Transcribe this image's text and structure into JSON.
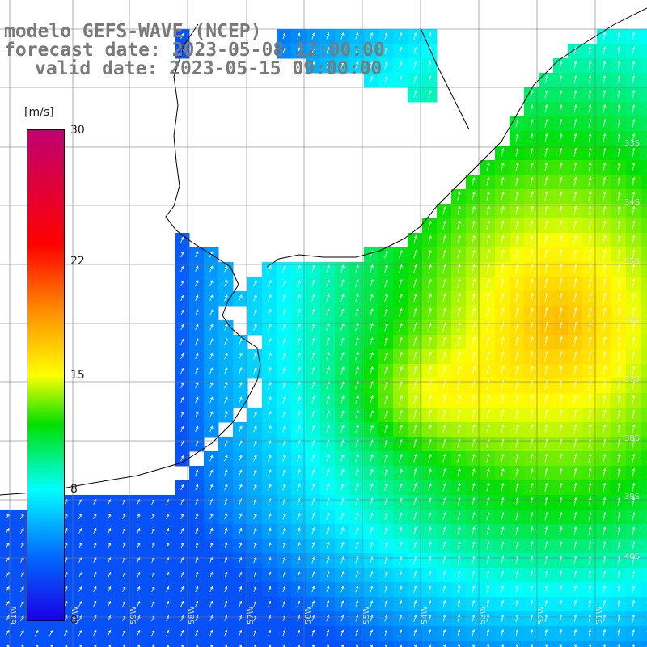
{
  "title": {
    "line1": "modelo GEFS-WAVE (NCEP)",
    "line2": "forecast date: 2023-05-08 12:00:00",
    "line3": "valid date: 2023-05-15 09:00:00"
  },
  "colorbar": {
    "unit": "[m/s]",
    "ticks": [
      {
        "label": "30",
        "value": 30
      },
      {
        "label": "22",
        "value": 22
      },
      {
        "label": "15",
        "value": 15
      },
      {
        "label": "8",
        "value": 8
      },
      {
        "label": "0",
        "value": 0
      }
    ],
    "min": 0,
    "max": 30,
    "colors": [
      "#1a00e6",
      "#006cff",
      "#00ffff",
      "#00e000",
      "#ffff00",
      "#ff8c00",
      "#ff0000",
      "#c00070"
    ]
  },
  "lat_labels": [
    "33S",
    "34S",
    "35S",
    "36S",
    "37S",
    "38S",
    "39S",
    "40S"
  ],
  "lon_labels": [
    "61W",
    "60W",
    "59W",
    "58W",
    "57W",
    "56W",
    "55W",
    "54W",
    "53W",
    "52W",
    "51W"
  ],
  "wind_field": {
    "description": "wind speed grid with arrows",
    "speed_range_shown": [
      3,
      18
    ]
  }
}
